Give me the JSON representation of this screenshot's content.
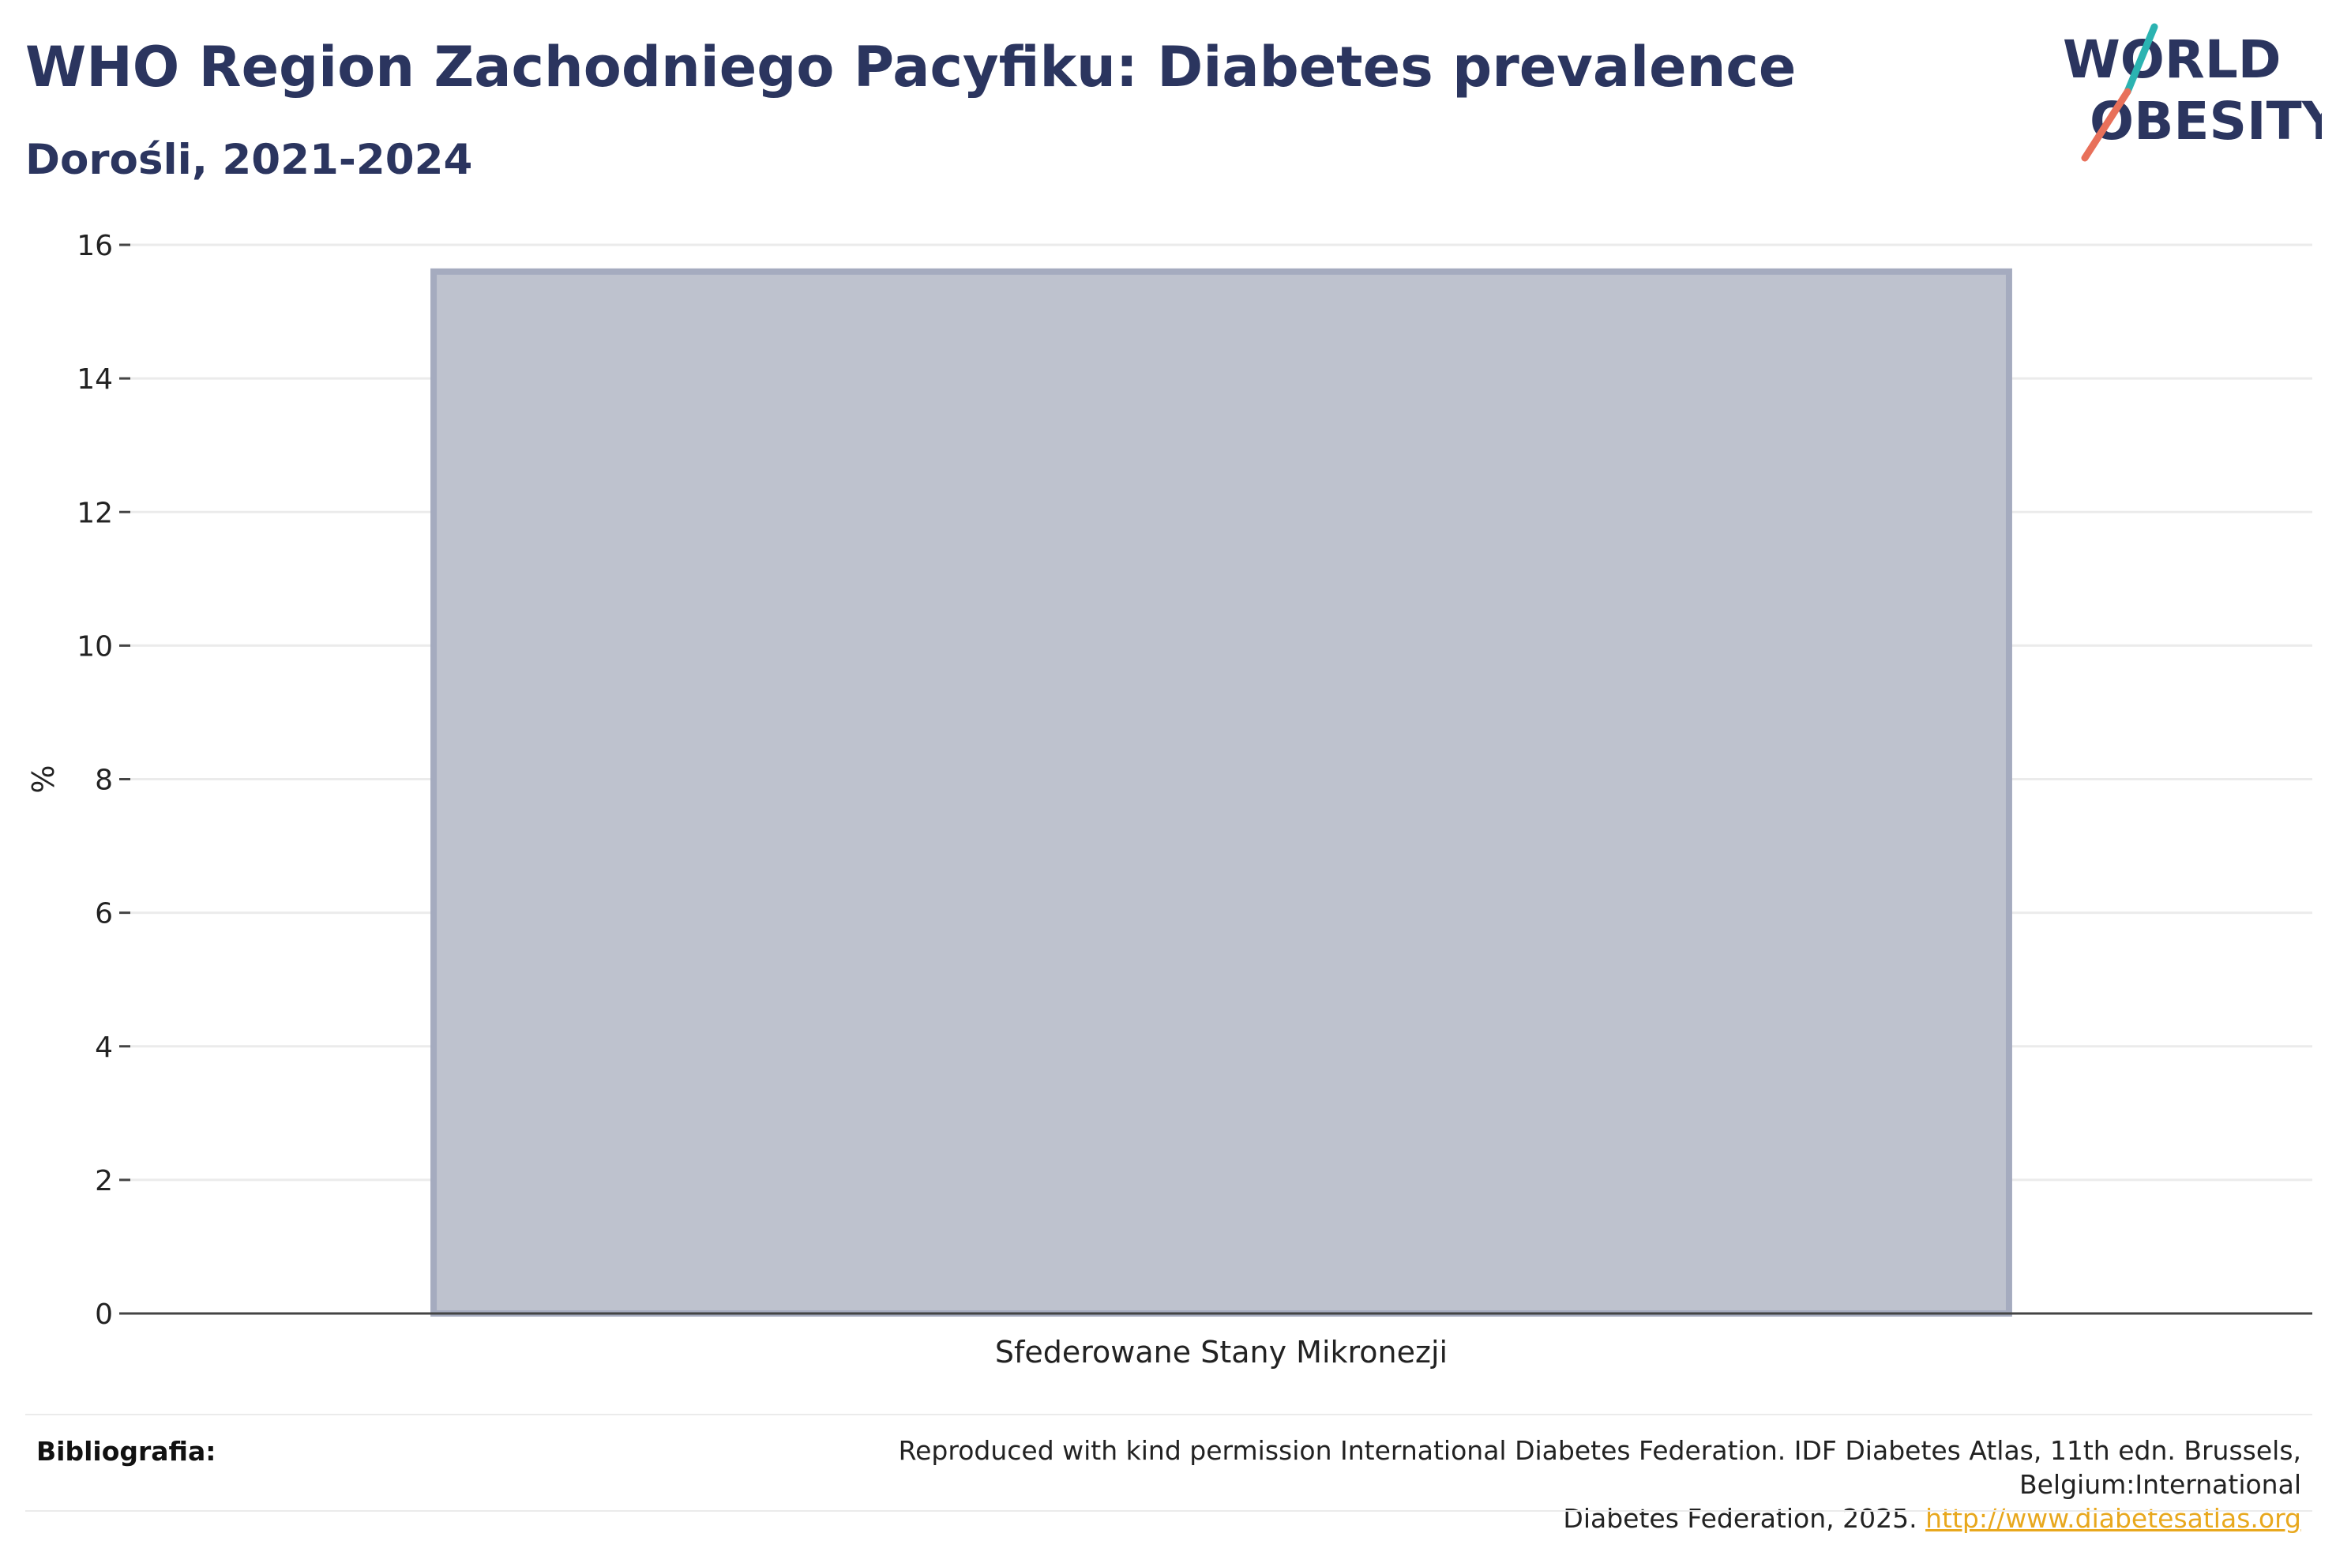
{
  "header": {
    "title": "WHO Region Zachodniego Pacyfiku: Diabetes prevalence",
    "subtitle": "Dorośli, 2021-2024"
  },
  "logo": {
    "line1": "WORLD",
    "line2": "OBESITY",
    "colors": {
      "text": "#2b355f",
      "slash_top": "#2bb3b1",
      "slash_bottom": "#e8705a"
    }
  },
  "chart_data": {
    "type": "bar",
    "categories": [
      "Sfederowane Stany Mikronezji"
    ],
    "series": [
      {
        "values": [
          15.6
        ]
      }
    ],
    "ylabel": "%",
    "xlabel": "",
    "ylim": [
      0,
      16
    ],
    "yticks": [
      0,
      2,
      4,
      6,
      8,
      10,
      12,
      14,
      16
    ],
    "grid": true,
    "legend": "none",
    "colors": {
      "bar_fill": "#bec2ce",
      "bar_stroke": "#a5abbf",
      "axis": "#444444",
      "grid": "#ebebeb"
    }
  },
  "footer": {
    "label": "Bibliografia:",
    "text_line1": "Reproduced with kind permission International Diabetes Federation. IDF Diabetes Atlas, 11th edn. Brussels, Belgium:International",
    "text_line2": "Diabetes Federation, 2025.",
    "link": "http://www.diabetesatlas.org"
  }
}
